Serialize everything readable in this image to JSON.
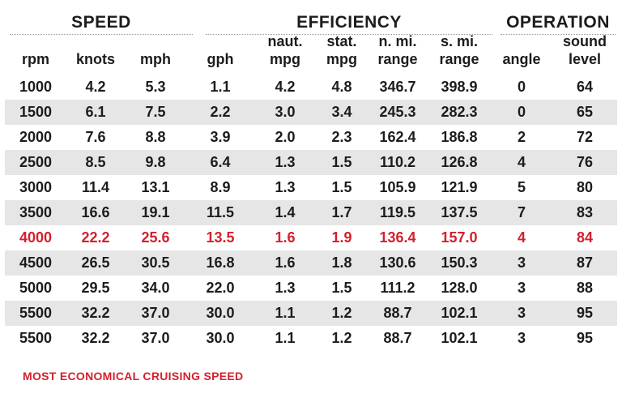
{
  "groups": {
    "speed": "SPEED",
    "efficiency": "EFFICIENCY",
    "operation": "OPERATION"
  },
  "columns": [
    {
      "top": "",
      "bottom": "rpm"
    },
    {
      "top": "",
      "bottom": "knots"
    },
    {
      "top": "",
      "bottom": "mph"
    },
    {
      "top": "",
      "bottom": "gph"
    },
    {
      "top": "naut.",
      "bottom": "mpg"
    },
    {
      "top": "stat.",
      "bottom": "mpg"
    },
    {
      "top": "n. mi.",
      "bottom": "range"
    },
    {
      "top": "s. mi.",
      "bottom": "range"
    },
    {
      "top": "",
      "bottom": "angle"
    },
    {
      "top": "sound",
      "bottom": "level"
    }
  ],
  "rows": [
    [
      "1000",
      "4.2",
      "5.3",
      "1.1",
      "4.2",
      "4.8",
      "346.7",
      "398.9",
      "0",
      "64"
    ],
    [
      "1500",
      "6.1",
      "7.5",
      "2.2",
      "3.0",
      "3.4",
      "245.3",
      "282.3",
      "0",
      "65"
    ],
    [
      "2000",
      "7.6",
      "8.8",
      "3.9",
      "2.0",
      "2.3",
      "162.4",
      "186.8",
      "2",
      "72"
    ],
    [
      "2500",
      "8.5",
      "9.8",
      "6.4",
      "1.3",
      "1.5",
      "110.2",
      "126.8",
      "4",
      "76"
    ],
    [
      "3000",
      "11.4",
      "13.1",
      "8.9",
      "1.3",
      "1.5",
      "105.9",
      "121.9",
      "5",
      "80"
    ],
    [
      "3500",
      "16.6",
      "19.1",
      "11.5",
      "1.4",
      "1.7",
      "119.5",
      "137.5",
      "7",
      "83"
    ],
    [
      "4000",
      "22.2",
      "25.6",
      "13.5",
      "1.6",
      "1.9",
      "136.4",
      "157.0",
      "4",
      "84"
    ],
    [
      "4500",
      "26.5",
      "30.5",
      "16.8",
      "1.6",
      "1.8",
      "130.6",
      "150.3",
      "3",
      "87"
    ],
    [
      "5000",
      "29.5",
      "34.0",
      "22.0",
      "1.3",
      "1.5",
      "111.2",
      "128.0",
      "3",
      "88"
    ],
    [
      "5500",
      "32.2",
      "37.0",
      "30.0",
      "1.1",
      "1.2",
      "88.7",
      "102.1",
      "3",
      "95"
    ],
    [
      "5500",
      "32.2",
      "37.0",
      "30.0",
      "1.1",
      "1.2",
      "88.7",
      "102.1",
      "3",
      "95"
    ]
  ],
  "highlight_row": 6,
  "highlight_color": "#d4202c",
  "footnote": "MOST ECONOMICAL CRUISING SPEED"
}
